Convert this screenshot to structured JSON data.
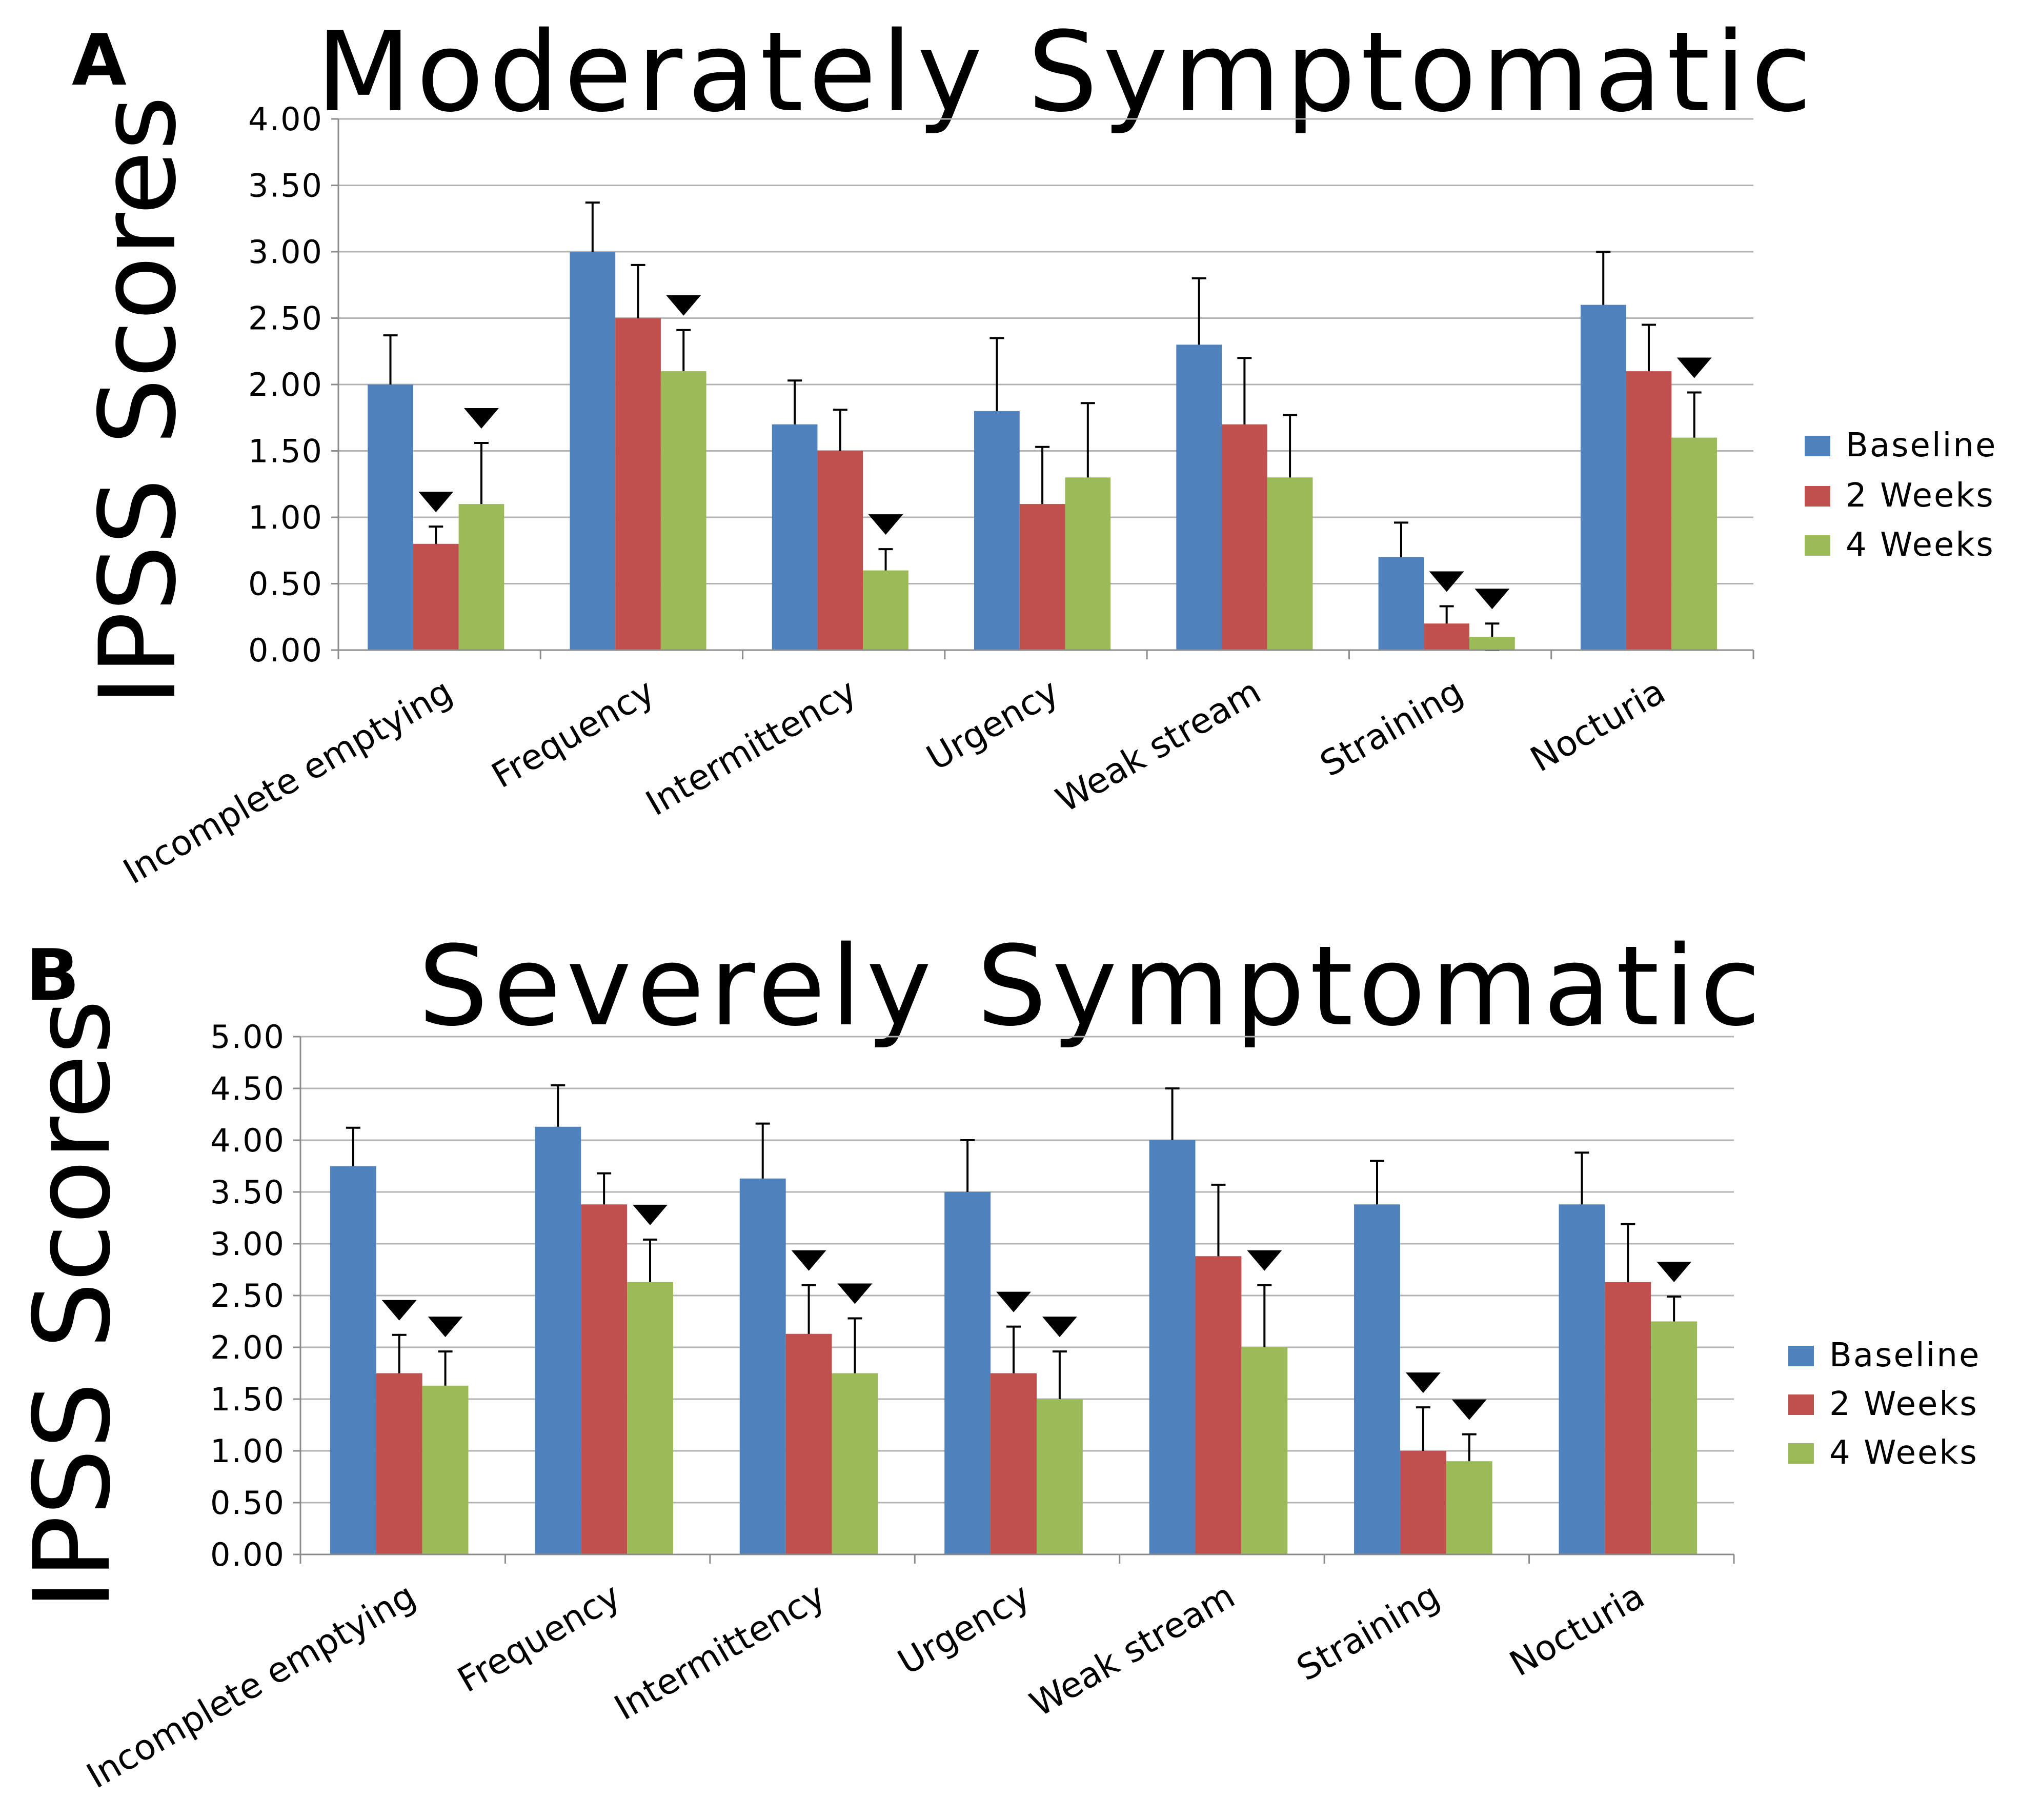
{
  "colors": {
    "baseline": "#4f81bd",
    "two_weeks": "#c0504d",
    "four_weeks": "#9bbb59",
    "gridline": "#b3b3b3",
    "axis": "#8c8c8c",
    "marker": "#000000"
  },
  "chart_data": [
    {
      "panel_label": "A",
      "type": "bar",
      "title": "Moderately Symptomatic",
      "xlabel": "",
      "ylabel": "IPSS Scores",
      "ylim": [
        0,
        4
      ],
      "ytick_step": 0.5,
      "yticks": [
        "0.00",
        "0.50",
        "1.00",
        "1.50",
        "2.00",
        "2.50",
        "3.00",
        "3.50",
        "4.00"
      ],
      "grid": true,
      "legend_position": "right",
      "categories": [
        "Incomplete emptying",
        "Frequency",
        "Intermittency",
        "Urgency",
        "Weak stream",
        "Straining",
        "Nocturia"
      ],
      "series": [
        {
          "name": "Baseline",
          "values": [
            2.0,
            3.0,
            1.7,
            1.8,
            2.3,
            0.7,
            2.6
          ],
          "errors": [
            0.37,
            0.37,
            0.33,
            0.55,
            0.5,
            0.26,
            0.4
          ],
          "significant": [
            false,
            false,
            false,
            false,
            false,
            false,
            false
          ]
        },
        {
          "name": "2 Weeks",
          "values": [
            0.8,
            2.5,
            1.5,
            1.1,
            1.7,
            0.2,
            2.1
          ],
          "errors": [
            0.13,
            0.4,
            0.31,
            0.43,
            0.5,
            0.13,
            0.35
          ],
          "significant": [
            true,
            false,
            false,
            false,
            false,
            true,
            false
          ]
        },
        {
          "name": "4 Weeks",
          "values": [
            1.1,
            2.1,
            0.6,
            1.3,
            1.3,
            0.1,
            1.6
          ],
          "errors": [
            0.46,
            0.31,
            0.16,
            0.56,
            0.47,
            0.1,
            0.34
          ],
          "significant": [
            true,
            true,
            true,
            false,
            false,
            true,
            true
          ]
        }
      ]
    },
    {
      "panel_label": "B",
      "type": "bar",
      "title": "Severely Symptomatic",
      "xlabel": "",
      "ylabel": "IPSS Scores",
      "ylim": [
        0,
        5
      ],
      "ytick_step": 0.5,
      "yticks": [
        "0.00",
        "0.50",
        "1.00",
        "1.50",
        "2.00",
        "2.50",
        "3.00",
        "3.50",
        "4.00",
        "4.50",
        "5.00"
      ],
      "grid": true,
      "legend_position": "right",
      "categories": [
        "Incomplete emptying",
        "Frequency",
        "Intermittency",
        "Urgency",
        "Weak stream",
        "Straining",
        "Nocturia"
      ],
      "series": [
        {
          "name": "Baseline",
          "values": [
            3.75,
            4.13,
            3.63,
            3.5,
            4.0,
            3.38,
            3.38
          ],
          "errors": [
            0.37,
            0.4,
            0.53,
            0.5,
            0.5,
            0.42,
            0.5
          ],
          "significant": [
            false,
            false,
            false,
            false,
            false,
            false,
            false
          ]
        },
        {
          "name": "2 Weeks",
          "values": [
            1.75,
            3.38,
            2.13,
            1.75,
            2.88,
            1.0,
            2.63
          ],
          "errors": [
            0.37,
            0.3,
            0.47,
            0.45,
            0.69,
            0.42,
            0.56
          ],
          "significant": [
            true,
            false,
            true,
            true,
            false,
            true,
            false
          ]
        },
        {
          "name": "4 Weeks",
          "values": [
            1.63,
            2.63,
            1.75,
            1.5,
            2.0,
            0.9,
            2.25
          ],
          "errors": [
            0.33,
            0.41,
            0.53,
            0.46,
            0.6,
            0.26,
            0.24
          ],
          "significant": [
            true,
            true,
            true,
            true,
            true,
            true,
            true
          ]
        }
      ]
    }
  ]
}
